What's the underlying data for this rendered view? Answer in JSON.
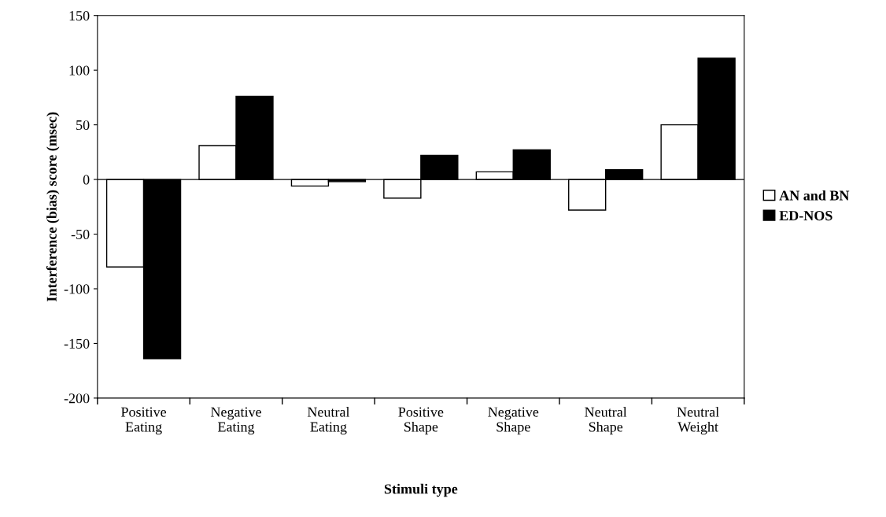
{
  "chart_data": {
    "type": "bar",
    "xlabel": "Stimuli type",
    "ylabel": "Interference (bias) score (msec)",
    "categories": [
      "Positive\nEating",
      "Negative\nEating",
      "Neutral\nEating",
      "Positive\nShape",
      "Negative\nShape",
      "Neutral\nShape",
      "Neutral\nWeight"
    ],
    "series": [
      {
        "name": "AN and BN",
        "color": "#ffffff",
        "values": [
          -80,
          31,
          -6,
          -17,
          7,
          -28,
          50
        ]
      },
      {
        "name": "ED-NOS",
        "color": "#000000",
        "values": [
          -164,
          76,
          -2,
          22,
          27,
          9,
          111
        ]
      }
    ],
    "ylim": [
      -200,
      150
    ],
    "yticks": [
      -200,
      -150,
      -100,
      -50,
      0,
      50,
      100,
      150
    ],
    "ref_lines": [
      {
        "axis": "y",
        "value": 0,
        "color": "#000000"
      }
    ],
    "legend": "right"
  }
}
